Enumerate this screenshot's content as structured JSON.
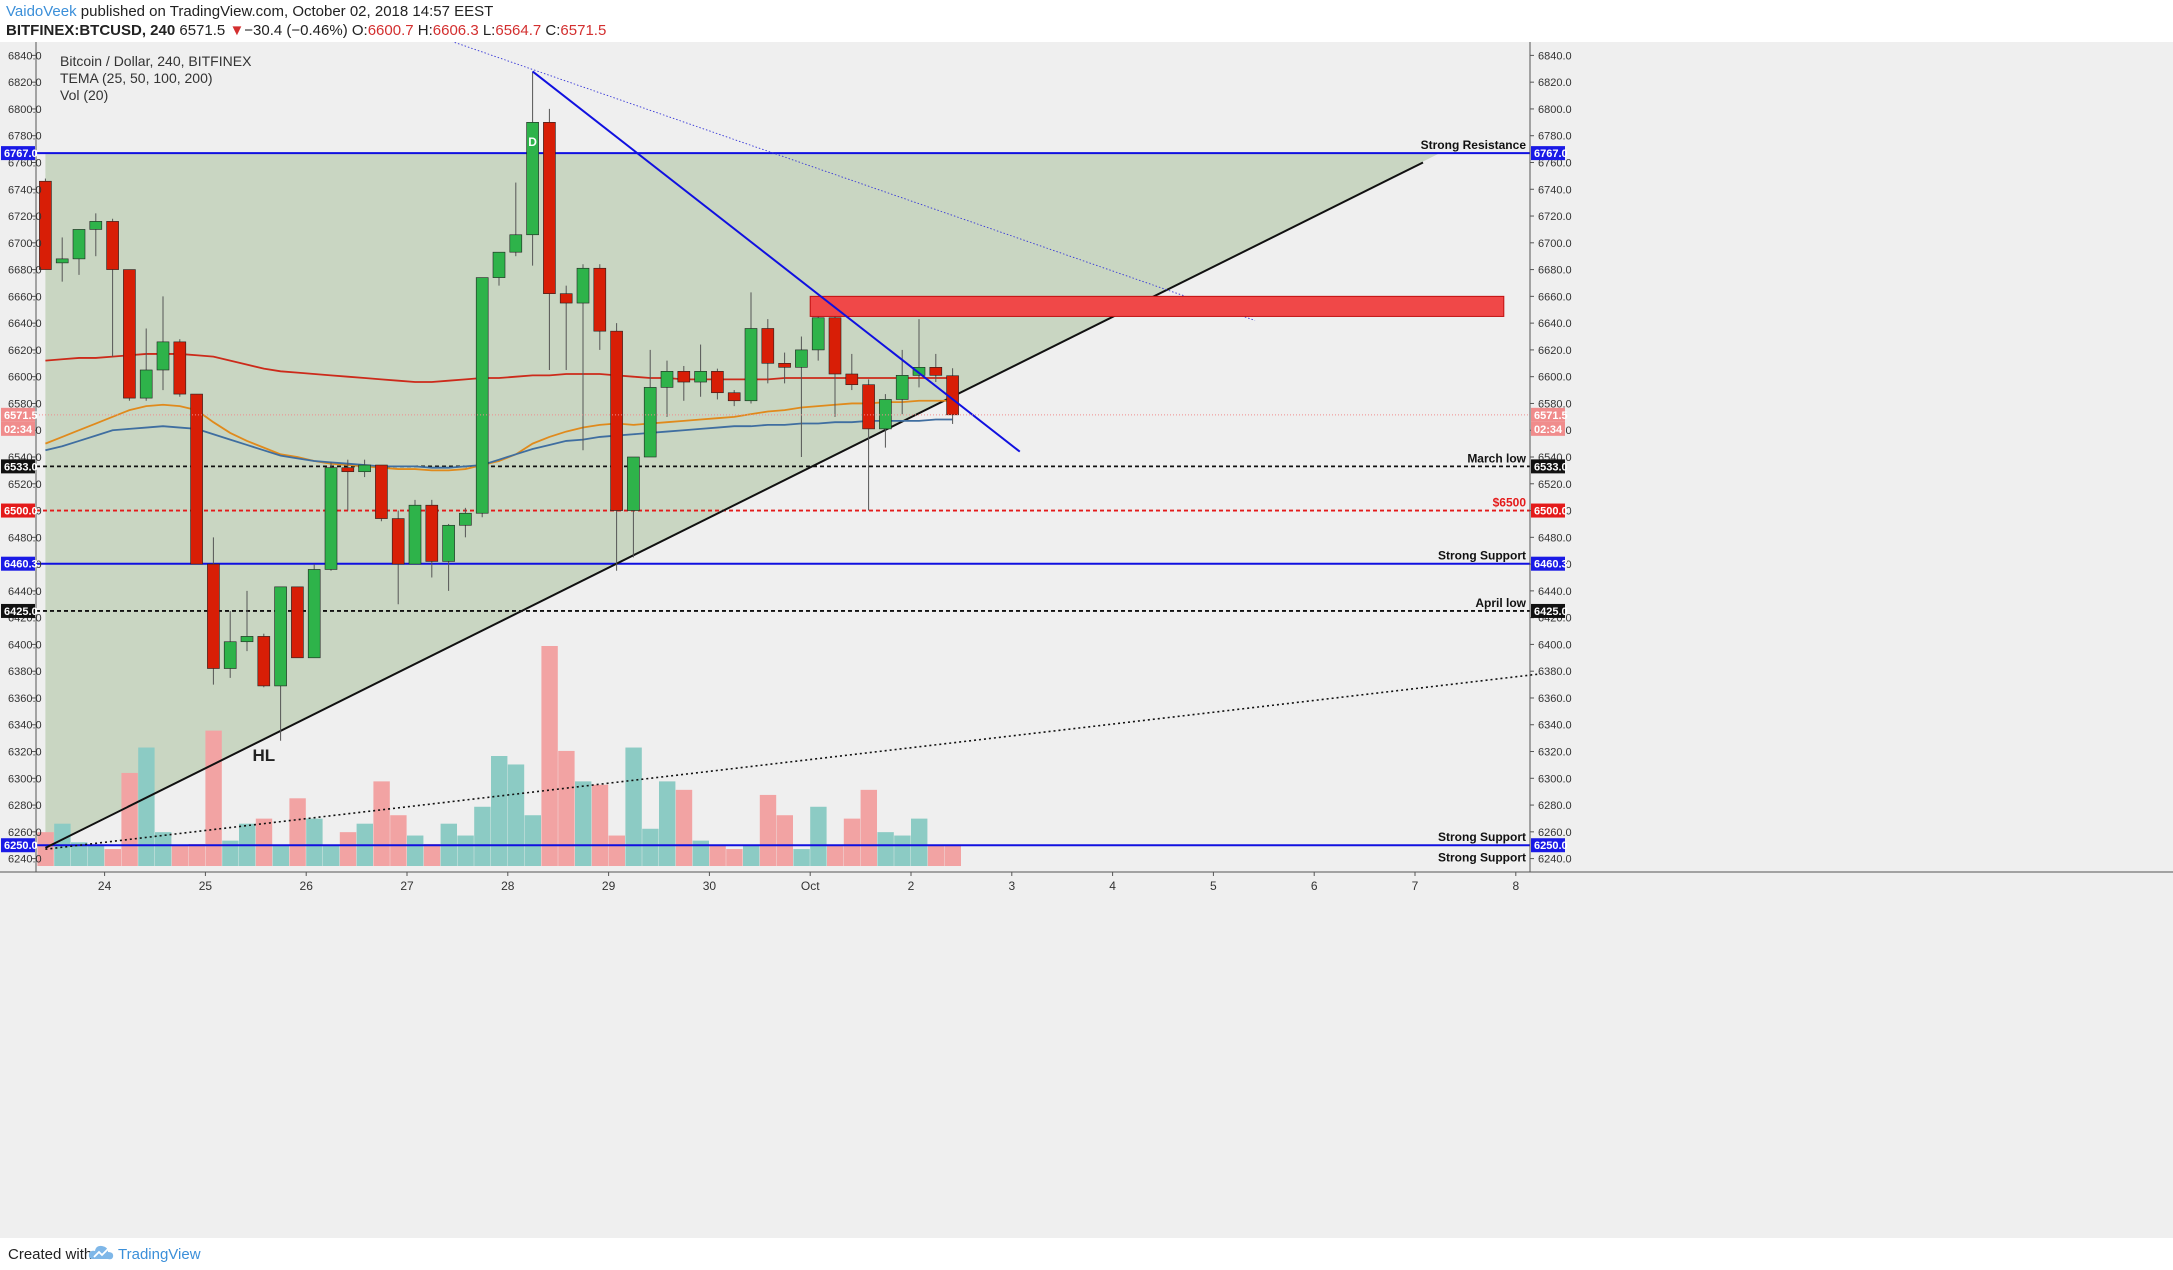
{
  "header": {
    "author": "VaidoVeek",
    "published_text": " published on TradingView.com, October 02, 2018 14:57 EEST",
    "symbol": "BITFINEX:BTCUSD, 240",
    "last": "6571.5",
    "change_arrow": "▼",
    "change": "−30.4 (−0.46%)",
    "o_label": "O:",
    "o": "6600.7",
    "h_label": "H:",
    "h": "6606.3",
    "l_label": "L:",
    "l": "6564.7",
    "c_label": "C:",
    "c": "6571.5"
  },
  "legend": {
    "title": "Bitcoin / Dollar, 240, BITFINEX",
    "indicator": "TEMA (25, 50, 100, 200)",
    "volume": "Vol (20)"
  },
  "footer": {
    "created_with": "Created with",
    "brand": "TradingView"
  },
  "colors": {
    "bull": "#2eb34a",
    "bear": "#d81e06",
    "bg": "#efefef",
    "triangle": "#c9d6c2",
    "blue": "#1010e0",
    "resistance_zone": "#f04848",
    "vol_bull": "#8ccbc4",
    "vol_bear": "#f2a3a3",
    "tema_red": "#cc2a1a",
    "tema_orange": "#e08a1c",
    "tema_blue": "#3f6ea0"
  },
  "chart_data": {
    "type": "candlestick",
    "symbol": "Bitcoin / Dollar, 240, BITFINEX",
    "ylim": [
      6230,
      6850
    ],
    "y_ticks": [
      6840,
      6820,
      6800,
      6780,
      6760,
      6740,
      6720,
      6700,
      6680,
      6660,
      6640,
      6620,
      6600,
      6580,
      6560,
      6540,
      6520,
      6500,
      6480,
      6460,
      6440,
      6420,
      6400,
      6380,
      6360,
      6340,
      6320,
      6300,
      6280,
      6260,
      6240
    ],
    "x_ticks": [
      {
        "label": "24",
        "idx": 4
      },
      {
        "label": "25",
        "idx": 10
      },
      {
        "label": "26",
        "idx": 16
      },
      {
        "label": "27",
        "idx": 22
      },
      {
        "label": "28",
        "idx": 28
      },
      {
        "label": "29",
        "idx": 34
      },
      {
        "label": "30",
        "idx": 40
      },
      {
        "label": "Oct",
        "idx": 46
      },
      {
        "label": "2",
        "idx": 52
      },
      {
        "label": "3",
        "idx": 58
      },
      {
        "label": "4",
        "idx": 64
      },
      {
        "label": "5",
        "idx": 70
      },
      {
        "label": "6",
        "idx": 76
      },
      {
        "label": "7",
        "idx": 82
      },
      {
        "label": "8",
        "idx": 88
      }
    ],
    "candles": [
      [
        6746,
        6748,
        6680,
        6680
      ],
      [
        6685,
        6704,
        6671,
        6688
      ],
      [
        6688,
        6710,
        6676,
        6710
      ],
      [
        6710,
        6722,
        6690,
        6716
      ],
      [
        6716,
        6718,
        6615,
        6680
      ],
      [
        6680,
        6680,
        6582,
        6584
      ],
      [
        6584,
        6636,
        6582,
        6605
      ],
      [
        6605,
        6660,
        6590,
        6626
      ],
      [
        6626,
        6628,
        6585,
        6587
      ],
      [
        6587,
        6587,
        6460,
        6460
      ],
      [
        6460,
        6480,
        6370,
        6382
      ],
      [
        6382,
        6425,
        6375,
        6402
      ],
      [
        6402,
        6440,
        6395,
        6406
      ],
      [
        6406,
        6408,
        6368,
        6369
      ],
      [
        6369,
        6443,
        6328,
        6443
      ],
      [
        6443,
        6443,
        6390,
        6390
      ],
      [
        6390,
        6460,
        6390,
        6456
      ],
      [
        6456,
        6536,
        6455,
        6532
      ],
      [
        6532,
        6538,
        6500,
        6529
      ],
      [
        6529,
        6538,
        6525,
        6534
      ],
      [
        6534,
        6534,
        6492,
        6494
      ],
      [
        6494,
        6500,
        6430,
        6460
      ],
      [
        6460,
        6508,
        6460,
        6504
      ],
      [
        6504,
        6508,
        6450,
        6462
      ],
      [
        6462,
        6490,
        6440,
        6489
      ],
      [
        6489,
        6502,
        6480,
        6498
      ],
      [
        6498,
        6674,
        6495,
        6674
      ],
      [
        6674,
        6693,
        6668,
        6693
      ],
      [
        6693,
        6745,
        6690,
        6706
      ],
      [
        6706,
        6828,
        6683,
        6790
      ],
      [
        6790,
        6800,
        6605,
        6662
      ],
      [
        6662,
        6668,
        6605,
        6655
      ],
      [
        6655,
        6684,
        6545,
        6681
      ],
      [
        6681,
        6684,
        6620,
        6634
      ],
      [
        6634,
        6640,
        6455,
        6500
      ],
      [
        6500,
        6540,
        6465,
        6540
      ],
      [
        6540,
        6620,
        6540,
        6592
      ],
      [
        6592,
        6612,
        6570,
        6604
      ],
      [
        6604,
        6608,
        6582,
        6596
      ],
      [
        6596,
        6624,
        6585,
        6604
      ],
      [
        6604,
        6606,
        6583,
        6588
      ],
      [
        6588,
        6590,
        6578,
        6582
      ],
      [
        6582,
        6663,
        6580,
        6636
      ],
      [
        6636,
        6643,
        6595,
        6610
      ],
      [
        6610,
        6618,
        6595,
        6607
      ],
      [
        6607,
        6630,
        6540,
        6620
      ],
      [
        6620,
        6654,
        6612,
        6644
      ],
      [
        6644,
        6660,
        6570,
        6602
      ],
      [
        6602,
        6617,
        6590,
        6594
      ],
      [
        6594,
        6598,
        6500,
        6561
      ],
      [
        6561,
        6587,
        6547,
        6583
      ],
      [
        6583,
        6620,
        6572,
        6601
      ],
      [
        6601,
        6643,
        6592,
        6607
      ],
      [
        6607,
        6617,
        6596,
        6601
      ],
      [
        6600.7,
        6606.3,
        6564.7,
        6571.5
      ]
    ],
    "volume": [
      20,
      25,
      14,
      12,
      10,
      55,
      70,
      20,
      12,
      13,
      80,
      15,
      25,
      28,
      12,
      40,
      28,
      12,
      20,
      25,
      50,
      30,
      18,
      13,
      25,
      18,
      35,
      65,
      60,
      30,
      130,
      68,
      50,
      48,
      18,
      70,
      22,
      50,
      45,
      15,
      12,
      10,
      12,
      42,
      30,
      10,
      35,
      12,
      28,
      45,
      20,
      18,
      28,
      12,
      12
    ],
    "tema": {
      "red": [
        6612,
        6613,
        6614,
        6614,
        6615,
        6616,
        6617,
        6617,
        6617,
        6616,
        6615,
        6612,
        6609,
        6606,
        6604,
        6603,
        6602,
        6601,
        6600,
        6599,
        6598,
        6597,
        6596,
        6596,
        6597,
        6598,
        6599,
        6599,
        6600,
        6601,
        6601,
        6602,
        6602,
        6602,
        6601,
        6600,
        6599,
        6599,
        6598,
        6598,
        6598,
        6598,
        6598,
        6598,
        6599,
        6599,
        6599,
        6599,
        6599,
        6599,
        6599,
        6599,
        6599,
        6599,
        6599
      ],
      "orange": [
        6550,
        6555,
        6560,
        6565,
        6570,
        6575,
        6578,
        6579,
        6578,
        6575,
        6566,
        6558,
        6552,
        6547,
        6542,
        6540,
        6537,
        6535,
        6534,
        6533,
        6532,
        6531,
        6531,
        6530,
        6530,
        6531,
        6534,
        6537,
        6542,
        6550,
        6555,
        6559,
        6562,
        6564,
        6565,
        6564,
        6565,
        6566,
        6567,
        6568,
        6569,
        6570,
        6572,
        6574,
        6575,
        6577,
        6578,
        6579,
        6580,
        6580,
        6581,
        6581,
        6582,
        6582,
        6582
      ],
      "blue": [
        6545,
        6548,
        6552,
        6556,
        6560,
        6561,
        6562,
        6563,
        6562,
        6561,
        6557,
        6553,
        6549,
        6545,
        6541,
        6539,
        6537,
        6536,
        6535,
        6534,
        6533,
        6533,
        6533,
        6532,
        6532,
        6533,
        6534,
        6538,
        6542,
        6546,
        6549,
        6552,
        6553,
        6555,
        6556,
        6557,
        6558,
        6559,
        6560,
        6561,
        6562,
        6563,
        6563,
        6564,
        6564,
        6565,
        6565,
        6566,
        6566,
        6567,
        6567,
        6567,
        6567,
        6568,
        6568
      ]
    },
    "hlines": [
      {
        "price": 6767.0,
        "tag": "6767.0",
        "label": "Strong Resistance",
        "style": "solid",
        "color": "#1010e0",
        "tag_bg": "#1a1ae6"
      },
      {
        "price": 6533.0,
        "tag": "6533.0",
        "label": "March low",
        "style": "dashed",
        "color": "#111111",
        "tag_bg": "#111111"
      },
      {
        "price": 6500.0,
        "tag": "6500.0",
        "label": "$6500",
        "style": "dashed",
        "color": "#e41a1a",
        "tag_bg": "#e41a1a",
        "label_color": "#e41a1a"
      },
      {
        "price": 6460.3,
        "tag": "6460.3",
        "label": "Strong Support",
        "style": "solid",
        "color": "#1010e0",
        "tag_bg": "#1a1ae6"
      },
      {
        "price": 6425.0,
        "tag": "6425.0",
        "label": "April low",
        "style": "dashed",
        "color": "#111111",
        "tag_bg": "#111111"
      },
      {
        "price": 6250.0,
        "tag": "6250.0",
        "label": "Strong Support",
        "style": "solid",
        "color": "#1010e0",
        "tag_bg": "#1a1ae6"
      },
      {
        "price": 6235.0,
        "tag": "",
        "label": "Strong Support",
        "style": "none",
        "color": "#1010e0",
        "tag_bg": "#1a1ae6"
      }
    ],
    "price_tag": {
      "price": 6571.5,
      "label": "6571.5",
      "timer": "02:34",
      "color": "#f08c8c"
    },
    "resistance_zone": {
      "from_idx": 46,
      "to_idx": 88,
      "y_top": 6660,
      "y_bottom": 6645
    },
    "triangle": {
      "apex_idx": 83,
      "apex_price": 6767,
      "lower_start_idx": 0,
      "lower_start_price": 6248,
      "lower_end_idx": 82,
      "lower_end_price": 6760
    },
    "downtrend_blue": {
      "from_idx": 29,
      "from_price": 6828,
      "to_idx": 58,
      "to_price": 6544
    },
    "downtrend_dotted": {
      "from_idx": 22,
      "from_price": 6860,
      "to_idx": 72,
      "to_price": 6642
    },
    "dotted_support": {
      "from_idx": 0,
      "from_price": 6247,
      "to_idx": 89,
      "to_price": 6378
    },
    "annotations": [
      {
        "text": "HL",
        "idx": 13,
        "price": 6313
      }
    ],
    "candle_marker": {
      "text": "D",
      "idx": 29,
      "price": 6776
    }
  }
}
